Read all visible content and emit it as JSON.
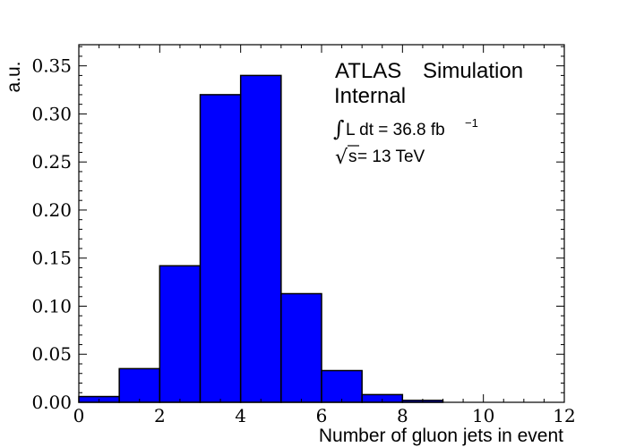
{
  "chart_data": {
    "type": "bar",
    "bin_edges": [
      0,
      1,
      2,
      3,
      4,
      5,
      6,
      7,
      8,
      9,
      10,
      11,
      12
    ],
    "values": [
      0.006,
      0.035,
      0.142,
      0.32,
      0.34,
      0.113,
      0.033,
      0.008,
      0.002,
      0.0,
      0.0,
      0.0
    ],
    "xlabel": "Number of gluon jets in event",
    "ylabel": "a.u.",
    "xlim": [
      0,
      12
    ],
    "ylim": [
      0,
      0.372
    ],
    "xticks": [
      0,
      2,
      4,
      6,
      8,
      10,
      12
    ],
    "yticks": [
      0.0,
      0.05,
      0.1,
      0.15,
      0.2,
      0.25,
      0.3,
      0.35
    ],
    "xtick_labels": [
      "0",
      "2",
      "4",
      "6",
      "8",
      "10",
      "12"
    ],
    "ytick_labels": [
      "0.00",
      "0.05",
      "0.10",
      "0.15",
      "0.20",
      "0.25",
      "0.30",
      "0.35"
    ],
    "fill_color": "#0000ff",
    "edge_color": "#000000",
    "grid": false
  },
  "annotations": {
    "atlas": "ATLAS",
    "simulation": "Simulation",
    "internal": "Internal",
    "integral_sym": "∫",
    "lumi_text": "L dt = 36.8 fb",
    "lumi_sup": "−1",
    "sqrt_sym": "√",
    "s_label": "s",
    "energy_text": " = 13 TeV"
  }
}
